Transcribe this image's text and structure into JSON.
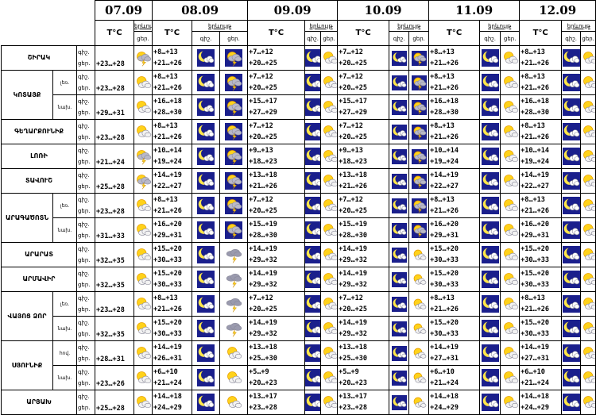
{
  "header": {
    "temp_label": "T°C",
    "weather_label": "երևույթ",
    "day_label": "ցեր.",
    "night_label": "գիշ."
  },
  "dates": [
    "07.09",
    "08.09",
    "09.09",
    "10.09",
    "11.09",
    "12.09"
  ],
  "row_labels": {
    "night": "գիշ.",
    "day": "ցեր."
  },
  "regions": [
    {
      "name": "ՇԻՐԱԿ",
      "rows": [
        {
          "zone": "",
          "temps": [
            "+23…+28",
            "+8…+13\n+21…+26",
            "+7…+12\n+20…+25",
            "+7…+12\n+20…+25",
            "+8…+13\n+21…+26",
            "+8…+13\n+21…+26"
          ],
          "icons": [
            "sun-storm",
            "moon-cloud",
            "sun-storm",
            "moon-cloud",
            "sun-cloud",
            "moon-cloud",
            "sun-storm",
            "moon-cloud",
            "sun-cloud",
            "moon-cloud",
            "sun-cloud"
          ]
        }
      ]
    },
    {
      "name": "ԿՈՏԱՅՔ",
      "rows": [
        {
          "zone": "լեռ.",
          "temps": [
            "+23…+28",
            "+8…+13\n+21…+26",
            "+7…+12\n+20…+25",
            "+7…+12\n+20…+25",
            "+8…+13\n+21…+26",
            "+8…+13\n+21…+26"
          ],
          "icons": [
            "sun-cloud",
            "moon-cloud",
            "sun-storm",
            "moon-cloud",
            "sun-cloud",
            "moon-cloud",
            "sun-storm",
            "moon-cloud",
            "sun-cloud",
            "moon-cloud",
            "sun-cloud"
          ]
        },
        {
          "zone": "նախ.",
          "temps": [
            "+29…+31",
            "+16…+18\n+28…+30",
            "+15…+17\n+27…+29",
            "+15…+17\n+27…+29",
            "+16…+18\n+28…+30",
            "+16…+18\n+28…+30"
          ],
          "icons": [
            "sun-cloud",
            "moon-cloud",
            "sun-storm",
            "moon-cloud",
            "sun-cloud",
            "moon-cloud",
            "sun-storm",
            "moon-cloud",
            "sun-cloud",
            "moon-cloud",
            "sun-cloud"
          ]
        }
      ]
    },
    {
      "name": "ԳԵՂԱՐՔՈՒՆԻՔ",
      "rows": [
        {
          "zone": "",
          "temps": [
            "+23…+28",
            "+8…+13\n+21…+26",
            "+7…+12\n+20…+25",
            "+7…+12\n+20…+25",
            "+8…+13\n+21…+26",
            "+8…+13\n+21…+26"
          ],
          "icons": [
            "sun-cloud",
            "moon-cloud",
            "sun-storm",
            "moon-cloud",
            "sun-cloud",
            "moon-cloud",
            "sun-storm",
            "moon-cloud",
            "sun-cloud",
            "moon-cloud",
            "sun-cloud"
          ]
        }
      ]
    },
    {
      "name": "ԼՈՌԻ",
      "rows": [
        {
          "zone": "",
          "temps": [
            "+21…+24",
            "+10…+14\n+19…+24",
            "+9…+13\n+18…+23",
            "+9…+13\n+18…+23",
            "+10…+14\n+19…+24",
            "+10…+14\n+19…+24"
          ],
          "icons": [
            "sun-storm",
            "moon-cloud",
            "sun-storm",
            "moon-cloud",
            "sun-cloud",
            "moon-cloud",
            "sun-storm",
            "moon-cloud",
            "sun-cloud",
            "moon-cloud",
            "sun-cloud"
          ]
        }
      ]
    },
    {
      "name": "ՏԱՎՈՒՇ",
      "rows": [
        {
          "zone": "",
          "temps": [
            "+25…+28",
            "+14…+19\n+22…+27",
            "+13…+18\n+21…+26",
            "+13…+18\n+21…+26",
            "+14…+19\n+22…+27",
            "+14…+19\n+22…+27"
          ],
          "icons": [
            "sun-storm",
            "moon-cloud",
            "sun-storm",
            "moon-cloud",
            "sun-cloud",
            "moon-cloud",
            "sun-storm",
            "moon-cloud",
            "sun-cloud",
            "moon-cloud",
            "sun-cloud"
          ]
        }
      ]
    },
    {
      "name": "ԱՐԱԳԱԾՈՏՆ",
      "rows": [
        {
          "zone": "լեռ.",
          "temps": [
            "+23…+28",
            "+8…+13\n+21…+26",
            "+7…+12\n+20…+25",
            "+7…+12\n+20…+25",
            "+8…+13\n+21…+26",
            "+8…+13\n+21…+26"
          ],
          "icons": [
            "sun-cloud",
            "moon-cloud",
            "sun-storm",
            "moon-cloud",
            "sun-cloud",
            "moon-cloud",
            "sun-storm",
            "moon-cloud",
            "sun-cloud",
            "moon-cloud",
            "sun-cloud"
          ]
        },
        {
          "zone": "նախ.",
          "temps": [
            "+31…+33",
            "+16…+20\n+29…+31",
            "+15…+19\n+28…+30",
            "+15…+19\n+28…+30",
            "+16…+20\n+29…+31",
            "+16…+20\n+29…+31"
          ],
          "icons": [
            "sun-cloud",
            "moon-cloud",
            "sun-storm",
            "moon-cloud",
            "sun-cloud",
            "moon-cloud",
            "sun-storm",
            "moon-cloud",
            "sun-cloud",
            "moon-cloud",
            "sun-cloud"
          ]
        }
      ]
    },
    {
      "name": "ԱՐԱՐԱՏ",
      "rows": [
        {
          "zone": "",
          "temps": [
            "+32…+35",
            "+15…+20\n+30…+33",
            "+14…+19\n+29…+32",
            "+14…+19\n+29…+32",
            "+15…+20\n+30…+33",
            "+15…+20\n+30…+33"
          ],
          "icons": [
            "sun-cloud",
            "moon-cloud",
            "storm-cloud",
            "moon-cloud",
            "sun-cloud",
            "moon-cloud",
            "sun-cloud",
            "moon-cloud",
            "sun-cloud",
            "moon-cloud",
            "sun-cloud"
          ]
        }
      ]
    },
    {
      "name": "ԱՐՄԱՎԻՐ",
      "rows": [
        {
          "zone": "",
          "temps": [
            "+32…+35",
            "+15…+20\n+30…+33",
            "+14…+19\n+29…+32",
            "+14…+19\n+29…+32",
            "+15…+20\n+30…+33",
            "+15…+20\n+30…+33"
          ],
          "icons": [
            "sun-cloud",
            "moon-cloud",
            "storm-cloud",
            "moon-cloud",
            "sun-cloud",
            "moon-cloud",
            "sun-cloud",
            "moon-cloud",
            "sun-cloud",
            "moon-cloud",
            "sun-cloud"
          ]
        }
      ]
    },
    {
      "name": "ՎԱՅՈՑ ՁՈՐ",
      "rows": [
        {
          "zone": "լեռ.",
          "temps": [
            "+23…+28",
            "+8…+13\n+21…+26",
            "+7…+12\n+20…+25",
            "+7…+12\n+20…+25",
            "+8…+13\n+21…+26",
            "+8…+13\n+21…+26"
          ],
          "icons": [
            "sun-cloud",
            "moon-cloud",
            "storm-cloud",
            "moon-cloud",
            "sun-cloud",
            "moon-cloud",
            "sun-cloud",
            "moon-cloud",
            "sun-cloud",
            "moon-cloud",
            "sun-cloud"
          ]
        },
        {
          "zone": "նախ.",
          "temps": [
            "+32…+35",
            "+15…+20\n+30…+33",
            "+14…+19\n+29…+32",
            "+14…+19\n+29…+32",
            "+15…+20\n+30…+33",
            "+15…+20\n+30…+33"
          ],
          "icons": [
            "sun-cloud",
            "moon-cloud",
            "storm-cloud",
            "moon-cloud",
            "sun-cloud",
            "moon-cloud",
            "sun-cloud",
            "moon-cloud",
            "sun-cloud",
            "moon-cloud",
            "sun-cloud"
          ]
        }
      ]
    },
    {
      "name": "ՍՅՈՒՆԻՔ",
      "rows": [
        {
          "zone": "հով.",
          "temps": [
            "+28…+31",
            "+14…+19\n+26…+31",
            "+13…+18\n+25…+30",
            "+13…+18\n+25…+30",
            "+14…+19\n+27…+31",
            "+14…+19\n+27…+31"
          ],
          "icons": [
            "sun-cloud",
            "moon-cloud",
            "sun-cloud",
            "moon-cloud",
            "sun-cloud",
            "moon-cloud",
            "sun-cloud",
            "moon-cloud",
            "sun-cloud",
            "moon-cloud",
            "sun-cloud"
          ]
        },
        {
          "zone": "նախ.",
          "temps": [
            "+23…+26",
            "+6…+10\n+21…+24",
            "+5…+9\n+20…+23",
            "+5…+9\n+20…+23",
            "+6…+10\n+21…+24",
            "+6…+10\n+21…+24"
          ],
          "icons": [
            "sun-cloud",
            "moon-cloud",
            "sun-cloud",
            "moon-cloud",
            "sun-cloud",
            "moon-cloud",
            "sun-cloud",
            "moon-cloud",
            "sun-cloud",
            "moon-cloud",
            "sun-cloud"
          ]
        }
      ]
    },
    {
      "name": "ԱՐՑԱԽ",
      "rows": [
        {
          "zone": "",
          "temps": [
            "+25…+28",
            "+14…+18\n+24…+29",
            "+13…+17\n+23…+28",
            "+13…+17\n+23…+28",
            "+14…+18\n+24…+29",
            "+14…+18\n+24…+29"
          ],
          "icons": [
            "sun-cloud",
            "moon-cloud",
            "sun-cloud",
            "moon-cloud",
            "sun-cloud",
            "moon-cloud",
            "sun-cloud",
            "moon-cloud",
            "sun-cloud",
            "moon-cloud",
            "sun-cloud"
          ]
        }
      ]
    }
  ]
}
